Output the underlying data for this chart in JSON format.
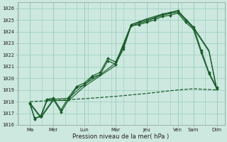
{
  "xlabel": "Pression niveau de la mer( hPa )",
  "background_color": "#cce8df",
  "plot_bg_color": "#cce8df",
  "grid_color": "#99ccbb",
  "line_color": "#1a5c2a",
  "ylim": [
    1016.0,
    1026.5
  ],
  "yticks": [
    1016,
    1017,
    1018,
    1019,
    1020,
    1021,
    1022,
    1023,
    1024,
    1025,
    1026
  ],
  "xlim": [
    -0.3,
    13.0
  ],
  "day_labels": [
    "Ma",
    "Mer",
    "Lun",
    "Mar",
    "Jeu",
    "Ven",
    "Sam",
    "Dim"
  ],
  "day_positions": [
    0.5,
    2.0,
    4.0,
    6.0,
    8.0,
    10.0,
    11.0,
    12.5
  ],
  "vline_positions": [
    0.5,
    2.0,
    4.0,
    6.0,
    8.0,
    10.0,
    11.0,
    12.5
  ],
  "lines": [
    {
      "x": [
        0.5,
        0.8,
        1.2,
        1.6,
        2.0,
        2.5,
        3.0,
        3.5,
        4.0,
        4.5,
        5.0,
        5.5,
        6.0,
        6.5,
        7.0,
        7.5,
        8.0,
        8.5,
        9.0,
        9.5,
        10.0,
        10.5,
        11.0,
        11.5,
        12.0,
        12.5
      ],
      "y": [
        1017.8,
        1016.6,
        1016.7,
        1018.1,
        1018.2,
        1017.1,
        1018.2,
        1019.2,
        1019.4,
        1020.1,
        1020.3,
        1021.5,
        1021.2,
        1022.5,
        1024.5,
        1024.6,
        1024.8,
        1025.0,
        1025.3,
        1025.4,
        1025.6,
        1024.8,
        1024.2,
        1022.2,
        1020.4,
        1019.1
      ],
      "marker": "D",
      "markersize": 2.0,
      "linewidth": 0.9,
      "color": "#1a5c2a",
      "linestyle": "-"
    },
    {
      "x": [
        0.5,
        0.8,
        1.2,
        1.6,
        2.0,
        2.5,
        3.0,
        3.5,
        4.0,
        4.5,
        5.0,
        5.5,
        6.0,
        6.5,
        7.0,
        7.5,
        8.0,
        8.5,
        9.0,
        9.5,
        10.0,
        10.5,
        11.0,
        11.5,
        12.0,
        12.5
      ],
      "y": [
        1017.9,
        1016.5,
        1016.8,
        1018.2,
        1018.3,
        1017.3,
        1018.4,
        1019.3,
        1019.6,
        1020.2,
        1020.5,
        1021.7,
        1021.4,
        1022.7,
        1024.6,
        1024.8,
        1025.0,
        1025.2,
        1025.5,
        1025.6,
        1025.8,
        1025.0,
        1024.4,
        1022.4,
        1020.5,
        1019.2
      ],
      "marker": "D",
      "markersize": 2.0,
      "linewidth": 0.9,
      "color": "#1a5c2a",
      "linestyle": "-"
    },
    {
      "x": [
        0.5,
        1.2,
        2.0,
        3.0,
        4.0,
        5.0,
        6.0,
        7.0,
        8.0,
        9.0,
        10.0,
        11.0,
        12.0,
        12.5
      ],
      "y": [
        1017.8,
        1016.6,
        1018.1,
        1018.1,
        1019.3,
        1020.2,
        1021.1,
        1024.5,
        1024.9,
        1025.4,
        1025.7,
        1024.3,
        1022.3,
        1019.0
      ],
      "marker": "None",
      "markersize": 0,
      "linewidth": 0.8,
      "color": "#1a5c2a",
      "linestyle": "-"
    },
    {
      "x": [
        0.5,
        1.2,
        2.0,
        3.0,
        4.0,
        5.0,
        6.0,
        7.0,
        8.0,
        9.0,
        10.0,
        11.0,
        12.0,
        12.5
      ],
      "y": [
        1017.9,
        1016.7,
        1018.2,
        1018.3,
        1019.5,
        1020.3,
        1021.3,
        1024.6,
        1025.1,
        1025.5,
        1025.8,
        1024.4,
        1022.4,
        1019.1
      ],
      "marker": "None",
      "markersize": 0,
      "linewidth": 0.8,
      "color": "#1a5c2a",
      "linestyle": "-"
    },
    {
      "x": [
        0.5,
        2.0,
        4.0,
        6.0,
        8.0,
        10.0,
        11.0,
        12.5
      ],
      "y": [
        1018.0,
        1018.1,
        1018.25,
        1018.45,
        1018.7,
        1019.0,
        1019.1,
        1019.0
      ],
      "marker": "None",
      "markersize": 0,
      "linewidth": 0.9,
      "color": "#1a5c2a",
      "linestyle": "--"
    }
  ]
}
